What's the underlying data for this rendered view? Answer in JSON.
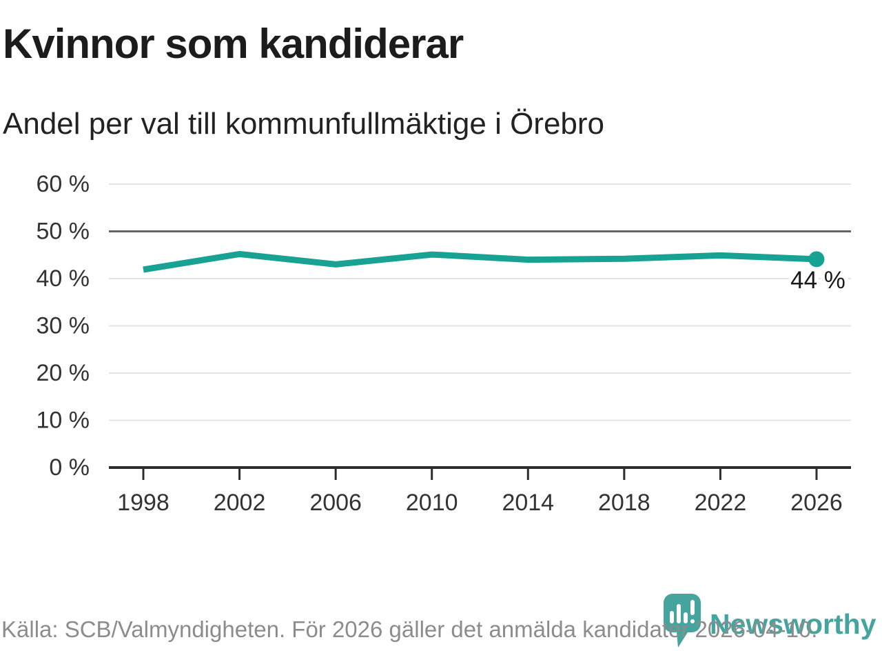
{
  "title": "Kvinnor som kandiderar",
  "subtitle": "Andel per val till kommunfullmäktige i Örebro",
  "chart_data": {
    "type": "line",
    "title": "Kvinnor som kandiderar",
    "subtitle": "Andel per val till kommunfullmäktige i Örebro",
    "x": [
      1998,
      2002,
      2006,
      2010,
      2014,
      2018,
      2022,
      2026
    ],
    "x_tick_labels": [
      "1998",
      "2002",
      "2006",
      "2010",
      "2014",
      "2018",
      "2022",
      "2026"
    ],
    "values": [
      42,
      45,
      43,
      45,
      44,
      44,
      45,
      44
    ],
    "values_precise": [
      41.9,
      45.2,
      43.0,
      45.1,
      44.0,
      44.2,
      44.9,
      44.1
    ],
    "unit": "%",
    "end_label": "44 %",
    "y_ticks": [
      {
        "value": 60,
        "label": "60 %"
      },
      {
        "value": 50,
        "label": "50 %"
      },
      {
        "value": 40,
        "label": "40 %"
      },
      {
        "value": 30,
        "label": "30 %"
      },
      {
        "value": 20,
        "label": "20 %"
      },
      {
        "value": 10,
        "label": "10 %"
      },
      {
        "value": 0,
        "label": "0 %"
      }
    ],
    "ylim": [
      0,
      63
    ],
    "grid": true,
    "legend": "none",
    "highlight_gridline_value": 50,
    "colors": {
      "line": "#17a293",
      "marker": "#17a293",
      "grid": "#e4e4e4",
      "highlight_grid": "#636363",
      "axis": "#2d2d2d",
      "tick_text": "#333333",
      "end_label_text": "#191919"
    }
  },
  "footer": {
    "source_text": "Källa: SCB/Valmyndigheten. För 2026 gäller det anmälda kandidater 2026-04-10."
  },
  "logo": {
    "text": "Newsworthy",
    "color": "#45a59e",
    "icon": "newsworthy-pin-barchart-icon"
  }
}
